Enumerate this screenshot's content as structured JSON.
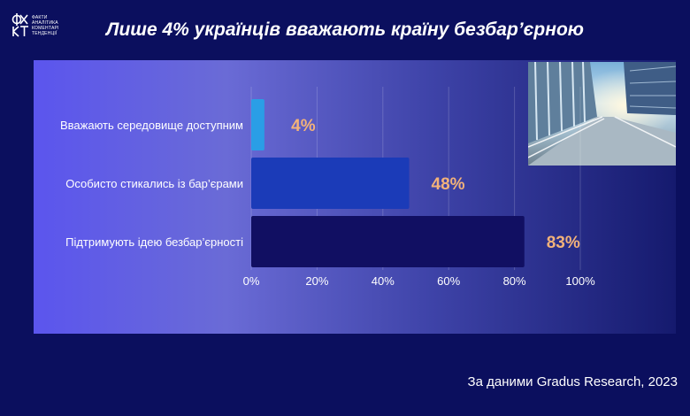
{
  "header": {
    "logo_words": [
      "ФАКТИ",
      "АНАЛІТИКА",
      "КОМЕНТАРІ",
      "ТЕНДЕНЦІЇ"
    ],
    "title": "Лише 4% українців вважають країну безбар’єрною"
  },
  "footer": {
    "source": "За даними Gradus Research, 2023"
  },
  "photo": {
    "name": "accessible-walkway-photo"
  },
  "colors": {
    "bars": [
      "#2a9ee6",
      "#1b3bb8",
      "#110f62"
    ],
    "value_label": "#f2b27a",
    "text": "#ffffff"
  },
  "chart_data": {
    "type": "bar",
    "orientation": "horizontal",
    "title": "Лише 4% українців вважають країну безбар’єрною",
    "categories": [
      "Вважають середовище доступним",
      "Особисто стикались із бар’єрами",
      "Підтримують ідею безбар’єрності"
    ],
    "values": [
      4,
      48,
      83
    ],
    "value_labels": [
      "4%",
      "48%",
      "83%"
    ],
    "xlim": [
      0,
      100
    ],
    "xticks": [
      "0%",
      "20%",
      "40%",
      "60%",
      "80%",
      "100%"
    ],
    "grid": true
  }
}
